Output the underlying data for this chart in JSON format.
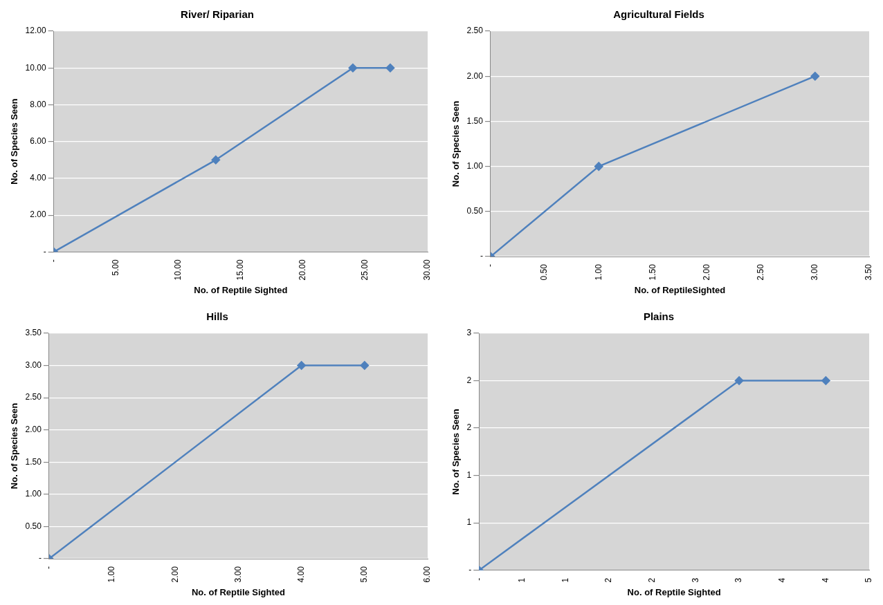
{
  "chart_data": [
    {
      "type": "line",
      "title": "River/ Riparian",
      "xlabel": "No. of Reptile Sighted",
      "ylabel": "No. of Species Seen",
      "x": [
        0,
        13,
        24,
        27
      ],
      "series": [
        {
          "color": "#4f81bd",
          "values": [
            0,
            5,
            10,
            10
          ]
        }
      ],
      "xlim": [
        0,
        30
      ],
      "ylim": [
        0,
        12
      ],
      "xticks": [
        {
          "value": 0,
          "label": "-"
        },
        {
          "value": 5,
          "label": "5.00"
        },
        {
          "value": 10,
          "label": "10.00"
        },
        {
          "value": 15,
          "label": "15.00"
        },
        {
          "value": 20,
          "label": "20.00"
        },
        {
          "value": 25,
          "label": "25.00"
        },
        {
          "value": 30,
          "label": "30.00"
        }
      ],
      "yticks": [
        {
          "value": 0,
          "label": "-"
        },
        {
          "value": 2,
          "label": "2.00"
        },
        {
          "value": 4,
          "label": "4.00"
        },
        {
          "value": 6,
          "label": "6.00"
        },
        {
          "value": 8,
          "label": "8.00"
        },
        {
          "value": 10,
          "label": "10.00"
        },
        {
          "value": 12,
          "label": "12.00"
        }
      ],
      "grid": "y",
      "marker": "diamond",
      "legend": false
    },
    {
      "type": "line",
      "title": "Agricultural Fields",
      "xlabel": "No. of ReptileSighted",
      "ylabel": "No. of Species Seen",
      "x": [
        0,
        1,
        3
      ],
      "series": [
        {
          "color": "#4f81bd",
          "values": [
            0,
            1,
            2
          ]
        }
      ],
      "xlim": [
        0,
        3.5
      ],
      "ylim": [
        0,
        2.5
      ],
      "xticks": [
        {
          "value": 0,
          "label": "-"
        },
        {
          "value": 0.5,
          "label": "0.50"
        },
        {
          "value": 1,
          "label": "1.00"
        },
        {
          "value": 1.5,
          "label": "1.50"
        },
        {
          "value": 2,
          "label": "2.00"
        },
        {
          "value": 2.5,
          "label": "2.50"
        },
        {
          "value": 3,
          "label": "3.00"
        },
        {
          "value": 3.5,
          "label": "3.50"
        }
      ],
      "yticks": [
        {
          "value": 0,
          "label": "-"
        },
        {
          "value": 0.5,
          "label": "0.50"
        },
        {
          "value": 1,
          "label": "1.00"
        },
        {
          "value": 1.5,
          "label": "1.50"
        },
        {
          "value": 2,
          "label": "2.00"
        },
        {
          "value": 2.5,
          "label": "2.50"
        }
      ],
      "grid": "y",
      "marker": "diamond",
      "legend": false
    },
    {
      "type": "line",
      "title": "Hills",
      "xlabel": "No. of Reptile Sighted",
      "ylabel": "No. of Species Seen",
      "x": [
        0,
        4,
        5
      ],
      "series": [
        {
          "color": "#4f81bd",
          "values": [
            0,
            3,
            3
          ]
        }
      ],
      "xlim": [
        0,
        6
      ],
      "ylim": [
        0,
        3.5
      ],
      "xticks": [
        {
          "value": 0,
          "label": "-"
        },
        {
          "value": 1,
          "label": "1.00"
        },
        {
          "value": 2,
          "label": "2.00"
        },
        {
          "value": 3,
          "label": "3.00"
        },
        {
          "value": 4,
          "label": "4.00"
        },
        {
          "value": 5,
          "label": "5.00"
        },
        {
          "value": 6,
          "label": "6.00"
        }
      ],
      "yticks": [
        {
          "value": 0,
          "label": "-"
        },
        {
          "value": 0.5,
          "label": "0.50"
        },
        {
          "value": 1,
          "label": "1.00"
        },
        {
          "value": 1.5,
          "label": "1.50"
        },
        {
          "value": 2,
          "label": "2.00"
        },
        {
          "value": 2.5,
          "label": "2.50"
        },
        {
          "value": 3,
          "label": "3.00"
        },
        {
          "value": 3.5,
          "label": "3.50"
        }
      ],
      "grid": "y",
      "marker": "diamond",
      "legend": false
    },
    {
      "type": "line",
      "title": "Plains",
      "xlabel": "No. of Reptile Sighted",
      "ylabel": "No. of Species Seen",
      "x": [
        0,
        3,
        4
      ],
      "series": [
        {
          "color": "#4f81bd",
          "values": [
            0,
            2,
            2
          ]
        }
      ],
      "xlim": [
        0,
        4.5
      ],
      "ylim": [
        0,
        2.5
      ],
      "xticks": [
        {
          "value": 0,
          "label": "-"
        },
        {
          "value": 0.5,
          "label": "1"
        },
        {
          "value": 1,
          "label": "1"
        },
        {
          "value": 1.5,
          "label": "2"
        },
        {
          "value": 2,
          "label": "2"
        },
        {
          "value": 2.5,
          "label": "3"
        },
        {
          "value": 3,
          "label": "3"
        },
        {
          "value": 3.5,
          "label": "4"
        },
        {
          "value": 4,
          "label": "4"
        },
        {
          "value": 4.5,
          "label": "5"
        }
      ],
      "yticks": [
        {
          "value": 0,
          "label": "-"
        },
        {
          "value": 0.5,
          "label": "1"
        },
        {
          "value": 1,
          "label": "1"
        },
        {
          "value": 1.5,
          "label": "2"
        },
        {
          "value": 2,
          "label": "2"
        },
        {
          "value": 2.5,
          "label": "3"
        }
      ],
      "grid": "y",
      "marker": "diamond",
      "legend": false
    }
  ]
}
